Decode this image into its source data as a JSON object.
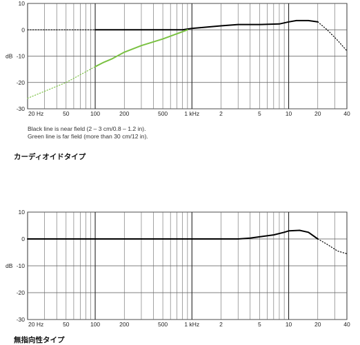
{
  "chart_data": [
    {
      "type": "line",
      "x_scale": "log",
      "xlim": [
        20,
        40000
      ],
      "ylim": [
        -30,
        10
      ],
      "grid": true,
      "ylabel": "dB",
      "y_ticks": [
        "10",
        "0",
        "-10",
        "-20",
        "-30"
      ],
      "x_tick_labels": [
        "20 Hz",
        "50",
        "100",
        "200",
        "500",
        "1 kHz",
        "2",
        "5",
        "10",
        "20",
        "40"
      ],
      "note_lines": [
        "Black line is near field (2 – 3 cm/0.8 – 1.2 in).",
        "Green line is far field (more than 30 cm/12 in)."
      ],
      "caption": "カーディオイドタイプ",
      "series": [
        {
          "color": "#000000",
          "points": [
            [
              100,
              0
            ],
            [
              200,
              0
            ],
            [
              500,
              0
            ],
            [
              800,
              0
            ],
            [
              1000,
              0.5
            ],
            [
              2000,
              1.5
            ],
            [
              3000,
              2
            ],
            [
              5000,
              2
            ],
            [
              8000,
              2.2
            ],
            [
              10000,
              3
            ],
            [
              12000,
              3.5
            ],
            [
              16000,
              3.5
            ],
            [
              20000,
              3
            ]
          ],
          "dotted_extension": [
            [
              20,
              0
            ],
            [
              100,
              0
            ]
          ],
          "dotted_tail": [
            [
              20000,
              3
            ],
            [
              25000,
              0
            ],
            [
              32000,
              -4
            ],
            [
              40000,
              -8
            ]
          ]
        },
        {
          "color": "#7ac142",
          "points": [
            [
              100,
              -14
            ],
            [
              120,
              -12.5
            ],
            [
              150,
              -11
            ],
            [
              200,
              -8.5
            ],
            [
              300,
              -6
            ],
            [
              500,
              -3.5
            ],
            [
              700,
              -1.5
            ],
            [
              900,
              0
            ]
          ],
          "dotted_extension": [
            [
              20,
              -26
            ],
            [
              50,
              -20
            ],
            [
              100,
              -14
            ]
          ]
        }
      ]
    },
    {
      "type": "line",
      "x_scale": "log",
      "xlim": [
        20,
        40000
      ],
      "ylim": [
        -30,
        10
      ],
      "grid": true,
      "ylabel": "dB",
      "y_ticks": [
        "10",
        "0",
        "-10",
        "-20",
        "-30"
      ],
      "x_tick_labels": [
        "20 Hz",
        "50",
        "100",
        "200",
        "500",
        "1 kHz",
        "2",
        "5",
        "10",
        "20",
        "40"
      ],
      "caption": "無指向性タイプ",
      "series": [
        {
          "color": "#000000",
          "points": [
            [
              20,
              0
            ],
            [
              100,
              0
            ],
            [
              500,
              0
            ],
            [
              1000,
              0
            ],
            [
              2000,
              0
            ],
            [
              3000,
              0
            ],
            [
              4000,
              0.3
            ],
            [
              5000,
              0.8
            ],
            [
              7000,
              1.5
            ],
            [
              9000,
              2.5
            ],
            [
              10000,
              3
            ],
            [
              13000,
              3.2
            ],
            [
              16000,
              2.5
            ],
            [
              20000,
              0
            ]
          ],
          "dotted_tail": [
            [
              20000,
              0
            ],
            [
              25000,
              -2
            ],
            [
              32000,
              -4.5
            ],
            [
              40000,
              -5.5
            ]
          ]
        }
      ]
    }
  ]
}
